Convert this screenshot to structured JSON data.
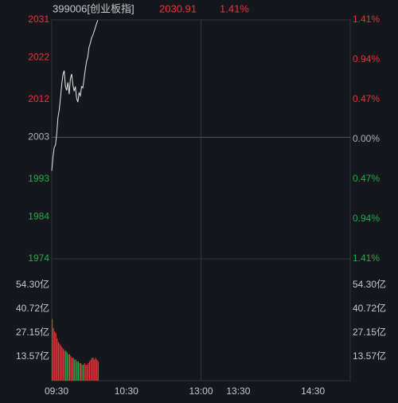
{
  "chart_data": [
    {
      "type": "line",
      "title": "399006[创业板指]",
      "last_price": "2030.91",
      "change": "1.41%",
      "x": [
        0,
        1,
        2,
        3,
        4,
        5,
        6,
        7,
        8,
        9,
        10,
        11,
        12,
        13,
        14,
        15,
        16,
        17,
        18,
        19,
        20,
        21,
        22,
        23,
        24,
        25,
        26,
        27,
        28,
        29,
        30,
        31,
        32,
        33,
        34,
        35,
        36,
        37
      ],
      "series": [
        {
          "name": "399006",
          "color": "#e8e8e8",
          "values": [
            1995.0,
            1998.3,
            2000.6,
            2001.1,
            2003.9,
            2007.7,
            2009.5,
            2012.3,
            2015.5,
            2017.9,
            2018.9,
            2015.1,
            2014.2,
            2016.1,
            2013.3,
            2017.0,
            2018.1,
            2015.5,
            2014.0,
            2015.1,
            2012.3,
            2011.4,
            2013.6,
            2012.9,
            2015.1,
            2014.8,
            2017.0,
            2019.2,
            2021.1,
            2022.2,
            2024.5,
            2025.4,
            2026.7,
            2027.3,
            2028.2,
            2029.1,
            2030.1,
            2030.91
          ]
        }
      ],
      "xlim": [
        0,
        240
      ],
      "xticks": [
        {
          "value": 0,
          "label": "09:30"
        },
        {
          "value": 60,
          "label": "10:30"
        },
        {
          "value": 120,
          "label": "13:00"
        },
        {
          "value": 150,
          "label": "13:30"
        },
        {
          "value": 210,
          "label": "14:30"
        }
      ],
      "ylim": [
        1974,
        2031
      ],
      "yticks": [
        2031,
        2022,
        2012,
        2003,
        1993,
        1984,
        1974
      ],
      "y2lim": [
        -1.41,
        1.41
      ],
      "y2ticks": [
        {
          "value": 1.41,
          "label": "1.41%"
        },
        {
          "value": 0.94,
          "label": "0.94%"
        },
        {
          "value": 0.47,
          "label": "0.47%"
        },
        {
          "value": 0,
          "label": "0.00%"
        },
        {
          "value": -0.47,
          "label": "0.47%"
        },
        {
          "value": -0.94,
          "label": "0.94%"
        },
        {
          "value": -1.41,
          "label": "1.41%"
        }
      ],
      "up_color": "#e8333a",
      "down_color": "#1fae4b",
      "flat_color": "#b0b0b0"
    },
    {
      "type": "bar",
      "values": [
        35,
        30,
        28,
        27,
        24,
        22,
        21,
        20,
        19,
        18,
        17,
        17,
        16,
        15,
        15,
        14,
        13,
        13,
        12,
        12,
        11,
        11,
        10,
        10,
        9,
        9,
        10,
        9,
        9,
        10,
        11,
        12,
        13,
        13,
        12,
        13,
        12,
        11
      ],
      "ylim": [
        0,
        69.2
      ],
      "yticks": [
        {
          "value": 54.3,
          "label": "54.30亿"
        },
        {
          "value": 40.72,
          "label": "40.72亿"
        },
        {
          "value": 27.15,
          "label": "27.15亿"
        },
        {
          "value": 13.57,
          "label": "13.57亿"
        }
      ]
    }
  ]
}
